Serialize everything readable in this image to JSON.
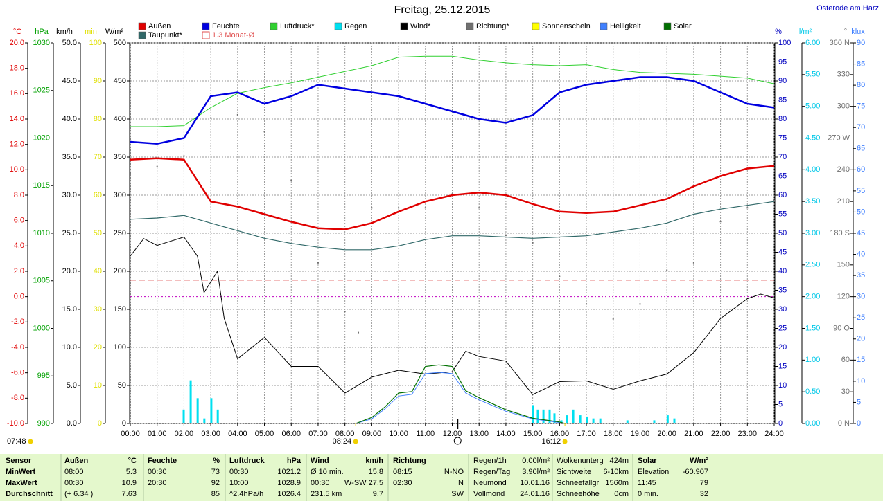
{
  "chart_data": {
    "type": "line",
    "title": "Freitag, 25.12.2015",
    "location": "Osterode am Harz",
    "xlim": [
      0,
      24
    ],
    "xticks": [
      {
        "value": 0,
        "label": "00:00"
      },
      {
        "value": 1,
        "label": "01:00"
      },
      {
        "value": 2,
        "label": "02:00"
      },
      {
        "value": 3,
        "label": "03:00"
      },
      {
        "value": 4,
        "label": "04:00"
      },
      {
        "value": 5,
        "label": "05:00"
      },
      {
        "value": 6,
        "label": "06:00"
      },
      {
        "value": 7,
        "label": "07:00"
      },
      {
        "value": 8,
        "label": "08:00"
      },
      {
        "value": 9,
        "label": "09:00"
      },
      {
        "value": 10,
        "label": "10:00"
      },
      {
        "value": 11,
        "label": "11:00"
      },
      {
        "value": 12,
        "label": "12:00"
      },
      {
        "value": 13,
        "label": "13:00"
      },
      {
        "value": 14,
        "label": "14:00"
      },
      {
        "value": 15,
        "label": "15:00"
      },
      {
        "value": 16,
        "label": "16:00"
      },
      {
        "value": 17,
        "label": "17:00"
      },
      {
        "value": 18,
        "label": "18:00"
      },
      {
        "value": 19,
        "label": "19:00"
      },
      {
        "value": 20,
        "label": "20:00"
      },
      {
        "value": 21,
        "label": "21:00"
      },
      {
        "value": 22,
        "label": "22:00"
      },
      {
        "value": 23,
        "label": "23:00"
      },
      {
        "value": 24,
        "label": "24:00"
      }
    ],
    "grid": true,
    "x": [
      0,
      1,
      2,
      3,
      4,
      5,
      6,
      7,
      8,
      9,
      10,
      11,
      12,
      13,
      14,
      15,
      16,
      17,
      18,
      19,
      20,
      21,
      22,
      23,
      24
    ],
    "axes": {
      "temp": {
        "label": "°C",
        "color": "#e00000",
        "lim": [
          -10,
          20
        ],
        "ticks": [
          {
            "value": -10,
            "label": "-10.0"
          },
          {
            "value": -8,
            "label": "-8.0"
          },
          {
            "value": -6,
            "label": "-6.0"
          },
          {
            "value": -4,
            "label": "-4.0"
          },
          {
            "value": -2,
            "label": "-2.0"
          },
          {
            "value": 0,
            "label": "0.0"
          },
          {
            "value": 2,
            "label": "2.0"
          },
          {
            "value": 4,
            "label": "4.0"
          },
          {
            "value": 6,
            "label": "6.0"
          },
          {
            "value": 8,
            "label": "8.0"
          },
          {
            "value": 10,
            "label": "10.0"
          },
          {
            "value": 12,
            "label": "12.0"
          },
          {
            "value": 14,
            "label": "14.0"
          },
          {
            "value": 16,
            "label": "16.0"
          },
          {
            "value": 18,
            "label": "18.0"
          },
          {
            "value": 20,
            "label": "20.0"
          }
        ]
      },
      "pres": {
        "label": "hPa",
        "color": "#00a000",
        "lim": [
          990,
          1030
        ],
        "ticks": [
          990,
          995,
          1000,
          1005,
          1010,
          1015,
          1020,
          1025,
          1030
        ]
      },
      "wind": {
        "label": "km/h",
        "color": "#000000",
        "lim": [
          0,
          50
        ],
        "ticks": [
          {
            "value": 0,
            "label": "0.0"
          },
          {
            "value": 5,
            "label": "5.0"
          },
          {
            "value": 10,
            "label": "10.0"
          },
          {
            "value": 15,
            "label": "15.0"
          },
          {
            "value": 20,
            "label": "20.0"
          },
          {
            "value": 25,
            "label": "25.0"
          },
          {
            "value": 30,
            "label": "30.0"
          },
          {
            "value": 35,
            "label": "35.0"
          },
          {
            "value": 40,
            "label": "40.0"
          },
          {
            "value": 45,
            "label": "45.0"
          },
          {
            "value": 50,
            "label": "50.0"
          }
        ]
      },
      "min": {
        "label": "min",
        "color": "#e0e000",
        "lim": [
          0,
          100
        ],
        "ticks": [
          0,
          10,
          20,
          30,
          40,
          50,
          60,
          70,
          80,
          90,
          100
        ]
      },
      "solar": {
        "label": "W/m²",
        "color": "#000000",
        "lim": [
          0,
          500
        ],
        "ticks": [
          0,
          50,
          100,
          150,
          200,
          250,
          300,
          350,
          400,
          450,
          500
        ]
      },
      "hum": {
        "label": "%",
        "color": "#0000c0",
        "lim": [
          0,
          100
        ],
        "ticks": [
          0,
          5,
          10,
          15,
          20,
          25,
          30,
          35,
          40,
          45,
          50,
          55,
          60,
          65,
          70,
          75,
          80,
          85,
          90,
          95,
          100
        ]
      },
      "rain": {
        "label": "l/m²",
        "color": "#00c8e8",
        "lim": [
          0,
          6
        ],
        "ticks": [
          {
            "value": 0,
            "label": "0.00"
          },
          {
            "value": 0.5,
            "label": "0.50"
          },
          {
            "value": 1,
            "label": "1.00"
          },
          {
            "value": 1.5,
            "label": "1.50"
          },
          {
            "value": 2,
            "label": "2.00"
          },
          {
            "value": 2.5,
            "label": "2.50"
          },
          {
            "value": 3,
            "label": "3.00"
          },
          {
            "value": 3.5,
            "label": "3.50"
          },
          {
            "value": 4,
            "label": "4.00"
          },
          {
            "value": 4.5,
            "label": "4.50"
          },
          {
            "value": 5,
            "label": "5.00"
          },
          {
            "value": 5.5,
            "label": "5.50"
          },
          {
            "value": 6,
            "label": "6.00"
          }
        ]
      },
      "dir": {
        "label": "°",
        "color": "#707070",
        "lim": [
          0,
          360
        ],
        "ticks": [
          {
            "value": 0,
            "label": "0 N"
          },
          30,
          60,
          {
            "value": 90,
            "label": "90 O"
          },
          120,
          150,
          {
            "value": 180,
            "label": "180 S"
          },
          210,
          240,
          {
            "value": 270,
            "label": "270 W"
          },
          300,
          330,
          {
            "value": 360,
            "label": "360 N"
          }
        ]
      },
      "lux": {
        "label": "klux",
        "color": "#4080ff",
        "lim": [
          0,
          90
        ],
        "ticks": [
          0,
          5,
          10,
          15,
          20,
          25,
          30,
          35,
          40,
          45,
          50,
          55,
          60,
          65,
          70,
          75,
          80,
          85,
          90
        ]
      }
    },
    "series": [
      {
        "name": "Außen",
        "color": "#e00000",
        "axis": "temp",
        "kind": "line",
        "width": 2.5,
        "values": [
          10.8,
          10.9,
          10.8,
          7.5,
          7.1,
          6.5,
          5.9,
          5.4,
          5.3,
          5.8,
          6.7,
          7.5,
          8.0,
          8.2,
          8.0,
          7.3,
          6.7,
          6.6,
          6.7,
          7.2,
          7.7,
          8.7,
          9.5,
          10.1,
          10.3
        ]
      },
      {
        "name": "Feuchte",
        "color": "#0000e0",
        "axis": "hum",
        "kind": "line",
        "width": 2.5,
        "values": [
          74,
          73.5,
          75,
          86,
          87,
          84,
          86,
          89,
          88,
          87,
          86,
          84,
          82,
          80,
          79,
          81,
          87,
          89,
          90,
          91,
          91,
          90,
          87,
          84,
          83
        ]
      },
      {
        "name": "Luftdruck*",
        "color": "#30d030",
        "axis": "pres",
        "kind": "line",
        "width": 1,
        "values": [
          1021.2,
          1021.2,
          1021.3,
          1023.2,
          1024.7,
          1025.3,
          1025.8,
          1026.4,
          1027.0,
          1027.6,
          1028.5,
          1028.6,
          1028.6,
          1028.2,
          1027.9,
          1027.7,
          1027.6,
          1027.7,
          1027.2,
          1026.9,
          1026.8,
          1026.7,
          1026.5,
          1026.3,
          1025.7
        ]
      },
      {
        "name": "Regen",
        "color": "#00e0f0",
        "axis": "rain",
        "kind": "bar",
        "x": [
          1.99,
          2.25,
          2.51,
          2.76,
          3.02,
          3.26,
          15.01,
          15.19,
          15.4,
          15.63,
          15.81,
          16.07,
          16.28,
          16.51,
          16.77,
          17.03,
          17.26,
          17.52,
          18.53,
          19.53,
          20.03,
          20.28
        ],
        "values": [
          0.22,
          0.68,
          0.4,
          0.08,
          0.4,
          0.22,
          0.29,
          0.22,
          0.22,
          0.22,
          0.16,
          0.05,
          0.13,
          0.22,
          0.13,
          0.11,
          0.08,
          0.08,
          0.05,
          0.05,
          0.13,
          0.08
        ]
      },
      {
        "name": "Wind*",
        "color": "#000000",
        "axis": "wind",
        "kind": "line",
        "width": 1,
        "x": [
          0,
          0.5,
          1,
          2,
          2.5,
          2.75,
          3.25,
          3.5,
          4,
          5,
          6,
          7,
          8,
          9,
          10,
          11,
          12,
          12.5,
          13,
          14,
          15,
          16,
          17,
          18,
          19,
          20,
          21,
          22,
          23,
          23.5,
          24
        ],
        "values": [
          22,
          24.3,
          23.4,
          24.5,
          22,
          17.2,
          20,
          13.8,
          8.5,
          11.3,
          7.5,
          7.5,
          4,
          6.1,
          7,
          6.5,
          6.8,
          9.5,
          8.8,
          8.2,
          3.8,
          5.5,
          5.6,
          4.5,
          5.6,
          6.5,
          9.3,
          13.8,
          16.4,
          17,
          16.5
        ]
      },
      {
        "name": "Richtung*",
        "color": "#707070",
        "axis": "dir",
        "kind": "dots",
        "x": [
          0,
          1,
          2,
          3,
          4,
          5,
          6,
          7,
          8,
          8.5,
          9,
          10,
          11,
          12,
          13,
          14,
          15,
          16,
          17,
          18,
          19,
          20,
          21,
          22,
          23,
          24
        ],
        "values": [
          237,
          243,
          253,
          289,
          292,
          276,
          230,
          152,
          106,
          86,
          204,
          204,
          204,
          217,
          204,
          178,
          171,
          139,
          113,
          99,
          113,
          145,
          152,
          191,
          204,
          211
        ]
      },
      {
        "name": "Sonnenschein",
        "color": "#ffff00",
        "axis": "min",
        "kind": "bar",
        "values": [
          0,
          0,
          0,
          0,
          0,
          0,
          0,
          0,
          0,
          0,
          0,
          0,
          0,
          0,
          0,
          0,
          0,
          0,
          0,
          0,
          0,
          0,
          0,
          0,
          0
        ]
      },
      {
        "name": "Helligkeit",
        "color": "#4080ff",
        "axis": "lux",
        "kind": "line",
        "width": 1,
        "x": [
          8.4,
          9,
          9.5,
          10,
          10.5,
          11,
          11.5,
          12,
          12.5,
          13,
          14,
          15,
          16,
          16.2
        ],
        "values": [
          0,
          1.1,
          3.5,
          6.5,
          6.9,
          11.8,
          12.1,
          11.8,
          7.2,
          5.6,
          2.9,
          1.1,
          0.2,
          0
        ]
      },
      {
        "name": "Solar",
        "color": "#007000",
        "axis": "solar",
        "kind": "line",
        "width": 1.2,
        "x": [
          8.4,
          9,
          9.5,
          10,
          10.5,
          11,
          11.5,
          12,
          12.5,
          13,
          14,
          15,
          16,
          16.2
        ],
        "values": [
          0,
          8,
          22,
          40,
          42,
          75,
          77,
          75,
          43,
          34,
          18,
          7,
          2,
          0
        ]
      },
      {
        "name": "Taupunkt*",
        "color": "#306868",
        "axis": "temp",
        "kind": "line",
        "width": 1.2,
        "values": [
          6.1,
          6.2,
          6.4,
          5.8,
          5.2,
          4.6,
          4.2,
          3.9,
          3.7,
          3.7,
          4.0,
          4.5,
          4.8,
          4.8,
          4.7,
          4.6,
          4.7,
          4.8,
          5.1,
          5.4,
          5.8,
          6.5,
          6.9,
          7.2,
          7.5
        ]
      }
    ],
    "reference_line": {
      "label": "1.3 Monat-Ø",
      "value": 1.3,
      "axis": "temp",
      "color": "#e05050"
    },
    "freeze_line": {
      "value": 0,
      "axis": "temp",
      "color": "#c000c0"
    },
    "sunrise_label": "07:48",
    "sun_marks": [
      {
        "x": 8.4,
        "label": "08:24"
      },
      {
        "x": 16.2,
        "label": "16:12"
      }
    ],
    "solar_noon": 12.2,
    "table": [
      [
        "Sensor",
        "Außen",
        "°C",
        "Feuchte",
        "%",
        "Luftdruck",
        "hPa",
        "Wind",
        "km/h",
        "Richtung",
        null,
        "Regen/1h",
        "0.00l/m²",
        "Wolkenunterg",
        "424m",
        "Solar",
        "W/m²"
      ],
      [
        "MinWert",
        "08:00",
        "5.3",
        "00:30",
        "73",
        "00:30",
        "1021.2",
        "Ø 10 min.",
        "15.8",
        "08:15",
        "N-NO",
        "Regen/Tag",
        "3.90l/m²",
        "Sichtweite",
        "6-10km",
        "Elevation",
        "-60.907"
      ],
      [
        "MaxWert",
        "00:30",
        "10.9",
        "20:30",
        "92",
        "10:00",
        "1028.9",
        "00:30",
        "W-SW 27.5",
        "02:30",
        "N",
        "Neumond",
        "10.01.16",
        "Schneefallgr",
        "1560m",
        "11:45",
        "79"
      ],
      [
        "Durchschnitt",
        "(+ 6.34 )",
        "7.63",
        null,
        "85",
        "^2.4hPa/h",
        "1026.4",
        "231.5 km",
        "9.7",
        null,
        "SW",
        "Vollmond",
        "24.01.16",
        "Schneehöhe",
        "0cm",
        "0 min.",
        "32"
      ]
    ]
  }
}
